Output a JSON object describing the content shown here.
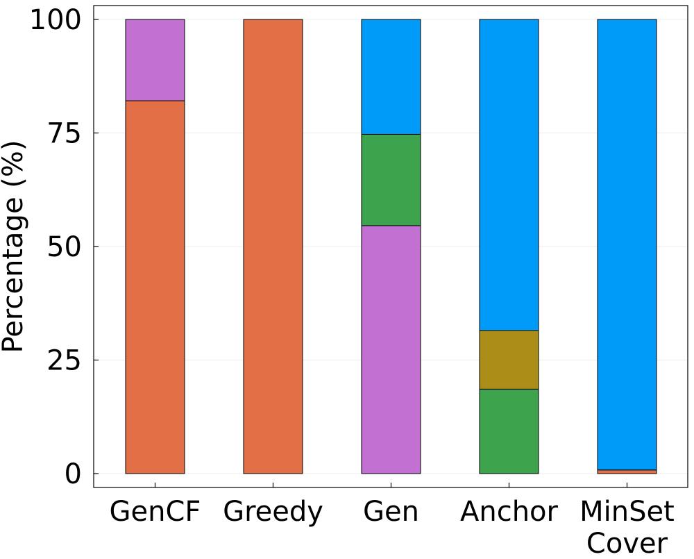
{
  "chart_data": {
    "type": "bar",
    "stacked": true,
    "title": "",
    "xlabel": "",
    "ylabel": "Percentage (%)",
    "ylim": [
      -3,
      103
    ],
    "yticks": [
      0,
      25,
      50,
      75,
      100
    ],
    "grid": true,
    "legend": "none",
    "categories": [
      [
        "GenCF"
      ],
      [
        "Greedy"
      ],
      [
        "Gen"
      ],
      [
        "Anchor"
      ],
      [
        "MinSet",
        "Cover"
      ]
    ],
    "series": [
      {
        "name": "orange",
        "color": "#e26f46",
        "values": [
          82.1,
          100,
          0,
          0,
          0.8
        ]
      },
      {
        "name": "purple",
        "color": "#c271d2",
        "values": [
          17.9,
          0,
          54.6,
          0,
          0
        ]
      },
      {
        "name": "green",
        "color": "#3da44d",
        "values": [
          0,
          0,
          20.1,
          18.6,
          0
        ]
      },
      {
        "name": "gold",
        "color": "#ac8d18",
        "values": [
          0,
          0,
          0,
          12.9,
          0
        ]
      },
      {
        "name": "blue",
        "color": "#009af9",
        "values": [
          0,
          0,
          25.3,
          68.5,
          99.2
        ]
      }
    ]
  }
}
